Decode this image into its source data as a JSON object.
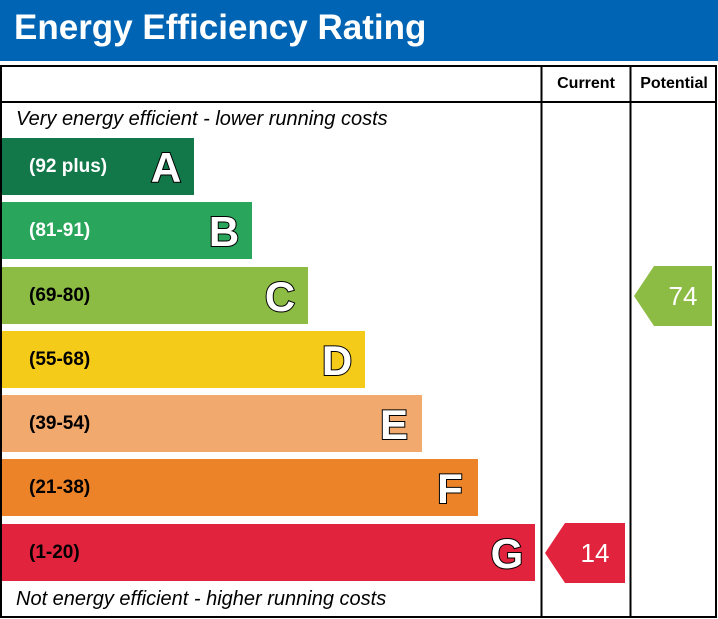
{
  "header": {
    "title": "Energy Efficiency Rating"
  },
  "columns": {
    "current": "Current",
    "potential": "Potential"
  },
  "captions": {
    "top": "Very energy efficient - lower running costs",
    "bottom": "Not energy efficient - higher running costs"
  },
  "chart_data": {
    "type": "bar",
    "categories": [
      "A",
      "B",
      "C",
      "D",
      "E",
      "F",
      "G"
    ],
    "ranges": [
      "(92 plus)",
      "(81-91)",
      "(69-80)",
      "(55-68)",
      "(39-54)",
      "(21-38)",
      "(1-20)"
    ],
    "colors": [
      "#12784a",
      "#2aa55c",
      "#8dbc45",
      "#f5cb1a",
      "#f1a96d",
      "#ec8329",
      "#e1233d"
    ],
    "range_text_colors": [
      "#ffffff",
      "#ffffff",
      "#000000",
      "#000000",
      "#000000",
      "#000000",
      "#000000"
    ],
    "current": {
      "value": 14,
      "band": "G",
      "label": "14"
    },
    "potential": {
      "value": 74,
      "band": "C",
      "label": "74"
    }
  }
}
